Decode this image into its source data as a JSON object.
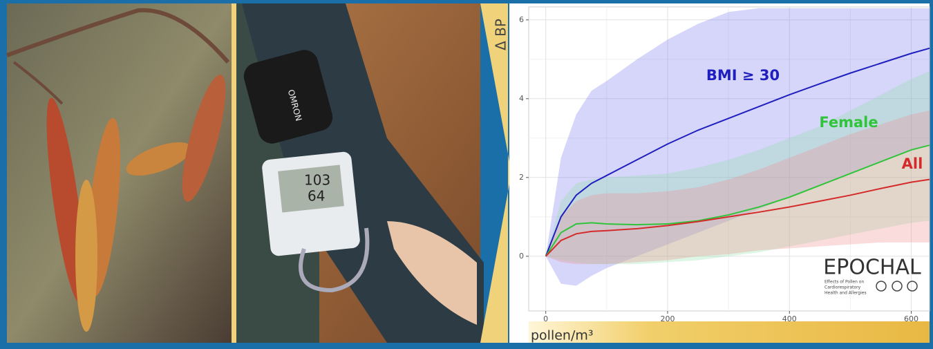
{
  "chart_data": {
    "type": "line",
    "y_label": "Δ BP",
    "x_label": "pollen/m³",
    "x": [
      0,
      25,
      50,
      75,
      100,
      150,
      200,
      250,
      300,
      350,
      400,
      450,
      500,
      550,
      600,
      630
    ],
    "series": [
      {
        "name": "BMI ≥ 30",
        "color": "#1f1fbf",
        "band_color": "#7878f0",
        "values": [
          0,
          1.0,
          1.55,
          1.85,
          2.05,
          2.45,
          2.85,
          3.2,
          3.5,
          3.8,
          4.1,
          4.38,
          4.65,
          4.9,
          5.15,
          5.28
        ],
        "upper": [
          0,
          2.5,
          3.6,
          4.2,
          4.45,
          5.0,
          5.5,
          5.9,
          6.2,
          6.3,
          6.3,
          6.3,
          6.3,
          6.3,
          6.3,
          6.3
        ],
        "lower": [
          0,
          -0.7,
          -0.75,
          -0.5,
          -0.3,
          0,
          0.3,
          0.6,
          0.9,
          1.2,
          1.5,
          1.8,
          2.1,
          2.4,
          2.7,
          2.85
        ]
      },
      {
        "name": "Female",
        "color": "#2fc43a",
        "band_color": "#8fe0a8",
        "values": [
          0,
          0.6,
          0.82,
          0.85,
          0.82,
          0.8,
          0.82,
          0.9,
          1.05,
          1.25,
          1.5,
          1.8,
          2.1,
          2.4,
          2.7,
          2.82
        ],
        "upper": [
          0,
          1.4,
          1.85,
          1.95,
          2.0,
          2.05,
          2.1,
          2.25,
          2.45,
          2.7,
          3.0,
          3.3,
          3.7,
          4.1,
          4.5,
          4.7
        ],
        "lower": [
          0,
          -0.1,
          -0.15,
          -0.2,
          -0.2,
          -0.2,
          -0.15,
          -0.1,
          0,
          0.1,
          0.25,
          0.4,
          0.55,
          0.7,
          0.85,
          0.9
        ]
      },
      {
        "name": "All",
        "color": "#d42a2a",
        "band_color": "#f08a8a",
        "values": [
          0,
          0.4,
          0.57,
          0.63,
          0.65,
          0.7,
          0.78,
          0.88,
          1.0,
          1.12,
          1.25,
          1.4,
          1.55,
          1.72,
          1.88,
          1.95
        ],
        "upper": [
          0,
          1.0,
          1.4,
          1.55,
          1.6,
          1.6,
          1.65,
          1.75,
          1.95,
          2.2,
          2.5,
          2.8,
          3.1,
          3.35,
          3.6,
          3.7
        ],
        "lower": [
          0,
          -0.15,
          -0.2,
          -0.2,
          -0.2,
          -0.15,
          -0.1,
          0,
          0.05,
          0.15,
          0.2,
          0.25,
          0.3,
          0.35,
          0.35,
          0.35
        ]
      }
    ],
    "xlim": [
      -28,
      630
    ],
    "ylim": [
      -1.39,
      6.33
    ],
    "xticks": [
      0,
      200,
      400,
      600
    ],
    "yticks": [
      0,
      2,
      4,
      6
    ],
    "grid": true
  },
  "logo": {
    "title": "EPOCHAL",
    "subtitle": [
      "Effects of Pollen on",
      "Cardiorespiratory",
      "Health and Allergies"
    ]
  },
  "photo": {
    "brand": "OMRON",
    "readings": [
      "103",
      "64"
    ]
  }
}
